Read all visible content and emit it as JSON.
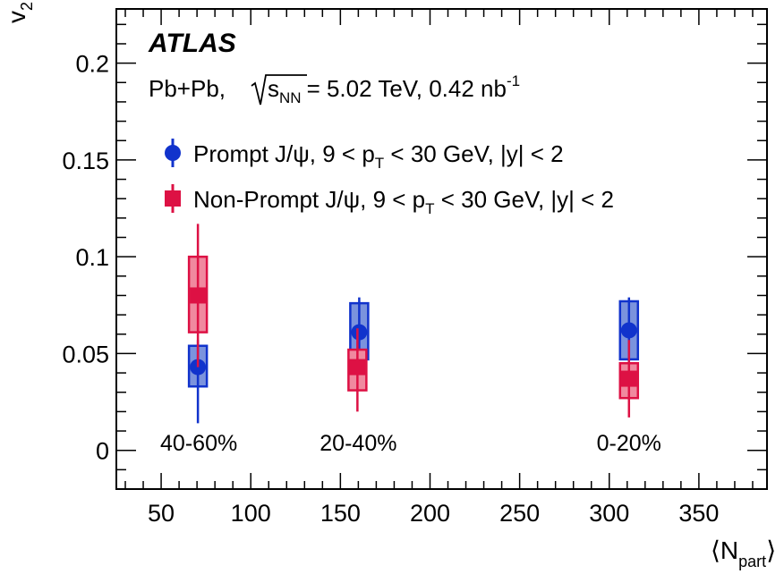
{
  "chart_data": {
    "type": "scatter",
    "experiment": "ATLAS",
    "system": {
      "collision": "Pb+Pb,",
      "sqrt": "s",
      "sqrt_sub": "NN",
      "energy": "= 5.02 TeV, 0.42 nb",
      "lumi_sup": "-1"
    },
    "xlabel": "⟨N",
    "xlabel_sub": "part",
    "xlabel_close": "⟩",
    "ylabel": "v",
    "ylabel_sub": "2",
    "xlim": [
      25,
      388
    ],
    "ylim": [
      -0.02,
      0.228
    ],
    "xticks": [
      50,
      100,
      150,
      200,
      250,
      300,
      350
    ],
    "xtick_labels": [
      "50",
      "100",
      "150",
      "200",
      "250",
      "300",
      "350"
    ],
    "yticks": [
      0,
      0.05,
      0.1,
      0.15,
      0.2
    ],
    "ytick_labels": [
      "0",
      "0.05",
      "0.1",
      "0.15",
      "0.2"
    ],
    "grid": false,
    "legend_position": "top-left",
    "centrality_labels": [
      {
        "text": "40-60%",
        "x": 71
      },
      {
        "text": "20-40%",
        "x": 160
      },
      {
        "text": "0-20%",
        "x": 311
      }
    ],
    "series": [
      {
        "name_main": "Prompt J/ψ, 9 < p",
        "name_sub": "T",
        "name_tail": " < 30 GeV, |y| < 2",
        "marker": "circle",
        "color": "#1133cc",
        "fill": "#7b93dd",
        "points": [
          {
            "x": 70.5,
            "y": 0.043,
            "stat": [
              0.014,
              0.057
            ],
            "sys": [
              0.033,
              0.054
            ]
          },
          {
            "x": 160.5,
            "y": 0.061,
            "stat": [
              0.047,
              0.079
            ],
            "sys": [
              0.047,
              0.076
            ]
          },
          {
            "x": 311.0,
            "y": 0.062,
            "stat": [
              0.046,
              0.079
            ],
            "sys": [
              0.047,
              0.077
            ]
          }
        ]
      },
      {
        "name_main": "Non-Prompt J/ψ, 9 < p",
        "name_sub": "T",
        "name_tail": " < 30 GeV, |y| < 2",
        "marker": "square",
        "color": "#dd1144",
        "fill": "#f0899f",
        "points": [
          {
            "x": 70.5,
            "y": 0.08,
            "stat": [
              0.043,
              0.117
            ],
            "sys": [
              0.061,
              0.1
            ]
          },
          {
            "x": 159.5,
            "y": 0.043,
            "stat": [
              0.02,
              0.063
            ],
            "sys": [
              0.031,
              0.052
            ]
          },
          {
            "x": 311.0,
            "y": 0.037,
            "stat": [
              0.017,
              0.057
            ],
            "sys": [
              0.027,
              0.045
            ]
          }
        ]
      }
    ]
  }
}
